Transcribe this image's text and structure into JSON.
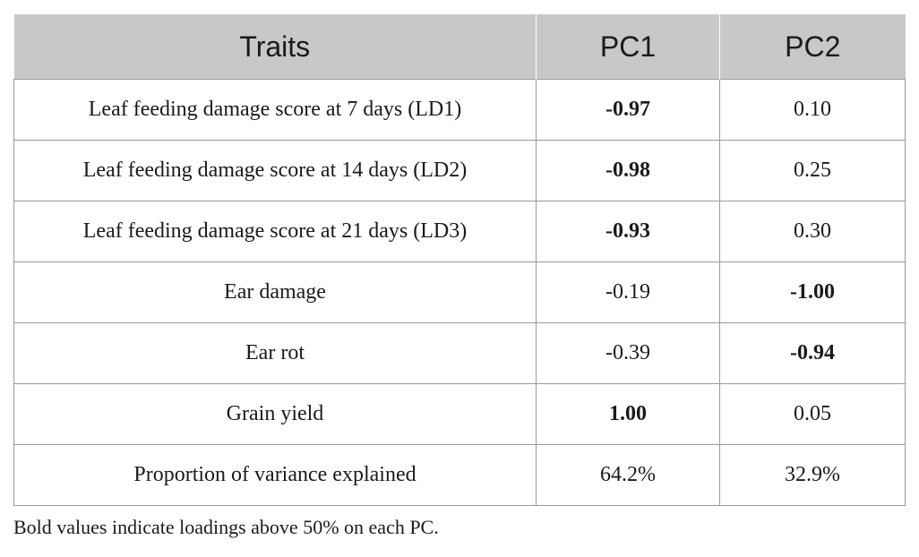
{
  "table": {
    "headers": [
      "Traits",
      "PC1",
      "PC2"
    ],
    "rows": [
      {
        "trait": "Leaf feeding damage score at 7 days (LD1)",
        "pc1": "-0.97",
        "pc2": "0.10",
        "pc1_bold": true,
        "pc2_bold": false
      },
      {
        "trait": "Leaf feeding damage score at 14 days (LD2)",
        "pc1": "-0.98",
        "pc2": "0.25",
        "pc1_bold": true,
        "pc2_bold": false
      },
      {
        "trait": "Leaf feeding damage score at 21 days (LD3)",
        "pc1": "-0.93",
        "pc2": "0.30",
        "pc1_bold": true,
        "pc2_bold": false
      },
      {
        "trait": "Ear damage",
        "pc1": "-0.19",
        "pc2": "-1.00",
        "pc1_bold": false,
        "pc2_bold": true
      },
      {
        "trait": "Ear rot",
        "pc1": "-0.39",
        "pc2": "-0.94",
        "pc1_bold": false,
        "pc2_bold": true
      },
      {
        "trait": "Grain yield",
        "pc1": "1.00",
        "pc2": "0.05",
        "pc1_bold": true,
        "pc2_bold": false
      },
      {
        "trait": "Proportion of variance explained",
        "pc1": "64.2%",
        "pc2": "32.9%",
        "pc1_bold": false,
        "pc2_bold": false
      }
    ]
  },
  "footnote": "Bold values indicate loadings above 50% on each PC.",
  "colors": {
    "header_bg": "#c8c8c8",
    "border": "#9a9a9a",
    "text": "#1a1a1a"
  }
}
